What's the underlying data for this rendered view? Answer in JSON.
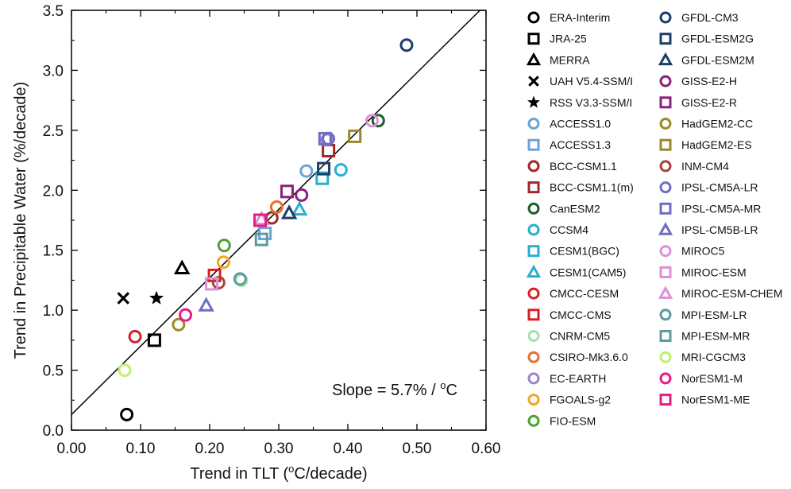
{
  "chart_data": {
    "type": "scatter",
    "xlabel_parts": [
      "Trend in TLT (",
      "o",
      "C/decade)"
    ],
    "ylabel": "Trend in Precipitable Water (%/decade)",
    "xlim": [
      0.0,
      0.6
    ],
    "ylim": [
      0.0,
      3.5
    ],
    "xticks": [
      "0.00",
      "0.10",
      "0.20",
      "0.30",
      "0.40",
      "0.50",
      "0.60"
    ],
    "yticks": [
      "0.0",
      "0.5",
      "1.0",
      "1.5",
      "2.0",
      "2.5",
      "3.0",
      "3.5"
    ],
    "grid": false,
    "legend_position": "right-outside",
    "annotation_parts": [
      "Slope = 5.7% / ",
      "o",
      "C"
    ],
    "fit_line": {
      "slope": 5.7,
      "intercept": 0.13
    },
    "series": [
      {
        "name": "ERA-Interim",
        "marker": "circle",
        "color": "#000000",
        "x": 0.08,
        "y": 0.13
      },
      {
        "name": "JRA-25",
        "marker": "square",
        "color": "#000000",
        "x": 0.12,
        "y": 0.75
      },
      {
        "name": "MERRA",
        "marker": "triangle",
        "color": "#000000",
        "x": 0.16,
        "y": 1.35
      },
      {
        "name": "UAH V5.4-SSM/I",
        "marker": "x",
        "color": "#000000",
        "x": 0.075,
        "y": 1.1
      },
      {
        "name": "RSS V3.3-SSM/I",
        "marker": "star",
        "color": "#000000",
        "x": 0.123,
        "y": 1.1
      },
      {
        "name": "ACCESS1.0",
        "marker": "circle",
        "color": "#6aa3d5",
        "x": 0.34,
        "y": 2.16
      },
      {
        "name": "ACCESS1.3",
        "marker": "square",
        "color": "#6aa3d5",
        "x": 0.28,
        "y": 1.64
      },
      {
        "name": "BCC-CSM1.1",
        "marker": "circle",
        "color": "#a0282a",
        "x": 0.29,
        "y": 1.77
      },
      {
        "name": "BCC-CSM1.1(m)",
        "marker": "square",
        "color": "#a0282a",
        "x": 0.372,
        "y": 2.33
      },
      {
        "name": "CanESM2",
        "marker": "circle",
        "color": "#1d5e26",
        "x": 0.444,
        "y": 2.58
      },
      {
        "name": "CCSM4",
        "marker": "circle",
        "color": "#2aaed0",
        "x": 0.39,
        "y": 2.17
      },
      {
        "name": "CESM1(BGC)",
        "marker": "square",
        "color": "#2aaed0",
        "x": 0.363,
        "y": 2.1
      },
      {
        "name": "CESM1(CAM5)",
        "marker": "triangle",
        "color": "#2aaed0",
        "x": 0.33,
        "y": 1.84
      },
      {
        "name": "CMCC-CESM",
        "marker": "circle",
        "color": "#d42127",
        "x": 0.092,
        "y": 0.78
      },
      {
        "name": "CMCC-CMS",
        "marker": "square",
        "color": "#d42127",
        "x": 0.207,
        "y": 1.29
      },
      {
        "name": "CNRM-CM5",
        "marker": "circle",
        "color": "#a6e2a8",
        "x": 0.246,
        "y": 1.25
      },
      {
        "name": "CSIRO-Mk3.6.0",
        "marker": "circle",
        "color": "#e6702f",
        "x": 0.297,
        "y": 1.86
      },
      {
        "name": "EC-EARTH",
        "marker": "circle",
        "color": "#9a86cf",
        "x": 0.37,
        "y": 2.42
      },
      {
        "name": "FGOALS-g2",
        "marker": "circle",
        "color": "#f4a623",
        "x": 0.22,
        "y": 1.4
      },
      {
        "name": "FIO-ESM",
        "marker": "circle",
        "color": "#4da332",
        "x": 0.221,
        "y": 1.54
      },
      {
        "name": "GFDL-CM3",
        "marker": "circle",
        "color": "#1b3e6b",
        "x": 0.485,
        "y": 3.21
      },
      {
        "name": "GFDL-ESM2G",
        "marker": "square",
        "color": "#1b3e6b",
        "x": 0.365,
        "y": 2.18
      },
      {
        "name": "GFDL-ESM2M",
        "marker": "triangle",
        "color": "#1b3e6b",
        "x": 0.315,
        "y": 1.81
      },
      {
        "name": "GISS-E2-H",
        "marker": "circle",
        "color": "#8a1f7c",
        "x": 0.333,
        "y": 1.96
      },
      {
        "name": "GISS-E2-R",
        "marker": "square",
        "color": "#8a1f7c",
        "x": 0.312,
        "y": 1.99
      },
      {
        "name": "HadGEM2-CC",
        "marker": "circle",
        "color": "#9a8a2b",
        "x": 0.155,
        "y": 0.88
      },
      {
        "name": "HadGEM2-ES",
        "marker": "square",
        "color": "#9a8a2b",
        "x": 0.41,
        "y": 2.45
      },
      {
        "name": "INM-CM4",
        "marker": "circle",
        "color": "#a8443a",
        "x": 0.213,
        "y": 1.23
      },
      {
        "name": "IPSL-CM5A-LR",
        "marker": "circle",
        "color": "#6f6ec0",
        "x": 0.372,
        "y": 2.43
      },
      {
        "name": "IPSL-CM5A-MR",
        "marker": "square",
        "color": "#6f6ec0",
        "x": 0.367,
        "y": 2.43
      },
      {
        "name": "IPSL-CM5B-LR",
        "marker": "triangle",
        "color": "#6f6ec0",
        "x": 0.195,
        "y": 1.04
      },
      {
        "name": "MIROC5",
        "marker": "circle",
        "color": "#dc90d8",
        "x": 0.435,
        "y": 2.58
      },
      {
        "name": "MIROC-ESM",
        "marker": "square",
        "color": "#dc90d8",
        "x": 0.203,
        "y": 1.22
      },
      {
        "name": "MIROC-ESM-CHEM",
        "marker": "triangle",
        "color": "#dc90d8",
        "x": 0.275,
        "y": 1.76
      },
      {
        "name": "MPI-ESM-LR",
        "marker": "circle",
        "color": "#5f9aa0",
        "x": 0.244,
        "y": 1.26
      },
      {
        "name": "MPI-ESM-MR",
        "marker": "square",
        "color": "#5f9aa0",
        "x": 0.275,
        "y": 1.59
      },
      {
        "name": "MRI-CGCM3",
        "marker": "circle",
        "color": "#bff06a",
        "x": 0.077,
        "y": 0.5
      },
      {
        "name": "NorESM1-M",
        "marker": "circle",
        "color": "#e61d87",
        "x": 0.165,
        "y": 0.96
      },
      {
        "name": "NorESM1-ME",
        "marker": "square",
        "color": "#e61d87",
        "x": 0.273,
        "y": 1.75
      }
    ]
  }
}
